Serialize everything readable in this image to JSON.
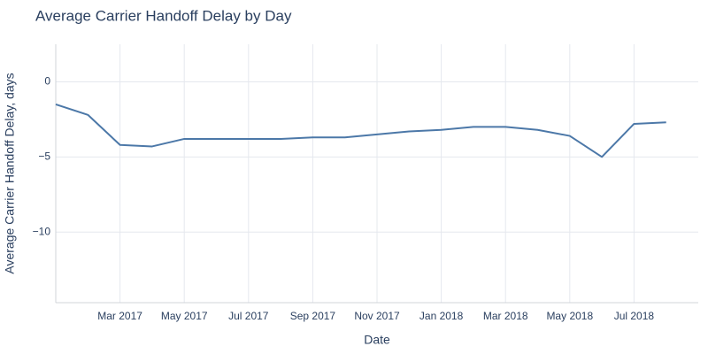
{
  "chart_data": {
    "type": "line",
    "title": "Average Carrier Handoff Delay by Day",
    "x_label": "Date",
    "y_label": "Average Carrier Handoff Delay, days",
    "x": [
      "2017-01",
      "2017-02",
      "2017-03",
      "2017-04",
      "2017-05",
      "2017-06",
      "2017-07",
      "2017-08",
      "2017-09",
      "2017-10",
      "2017-11",
      "2017-12",
      "2018-01",
      "2018-02",
      "2018-03",
      "2018-04",
      "2018-05",
      "2018-06",
      "2018-07",
      "2018-08"
    ],
    "series": [
      {
        "name": "Average Carrier Handoff Delay",
        "color": "#4c78a8",
        "values": [
          -1.5,
          -2.2,
          -4.2,
          -4.3,
          -3.8,
          -3.8,
          -3.8,
          -3.8,
          -3.7,
          -3.7,
          -3.5,
          -3.3,
          -3.2,
          -3.0,
          -3.0,
          -3.2,
          -3.6,
          -5.0,
          -2.8,
          -2.7
        ]
      }
    ],
    "xlim": [
      "2017-01",
      "2018-09"
    ],
    "xticks": [
      {
        "value": "2017-03",
        "label": "Mar 2017"
      },
      {
        "value": "2017-05",
        "label": "May 2017"
      },
      {
        "value": "2017-07",
        "label": "Jul 2017"
      },
      {
        "value": "2017-09",
        "label": "Sep 2017"
      },
      {
        "value": "2017-11",
        "label": "Nov 2017"
      },
      {
        "value": "2018-01",
        "label": "Jan 2018"
      },
      {
        "value": "2018-03",
        "label": "Mar 2018"
      },
      {
        "value": "2018-05",
        "label": "May 2018"
      },
      {
        "value": "2018-07",
        "label": "Jul 2018"
      }
    ],
    "ylim": [
      -14.7,
      2.5
    ],
    "yticks": [
      {
        "value": -10,
        "label": "−10"
      },
      {
        "value": -5,
        "label": "−5"
      },
      0
    ],
    "grid": true
  }
}
